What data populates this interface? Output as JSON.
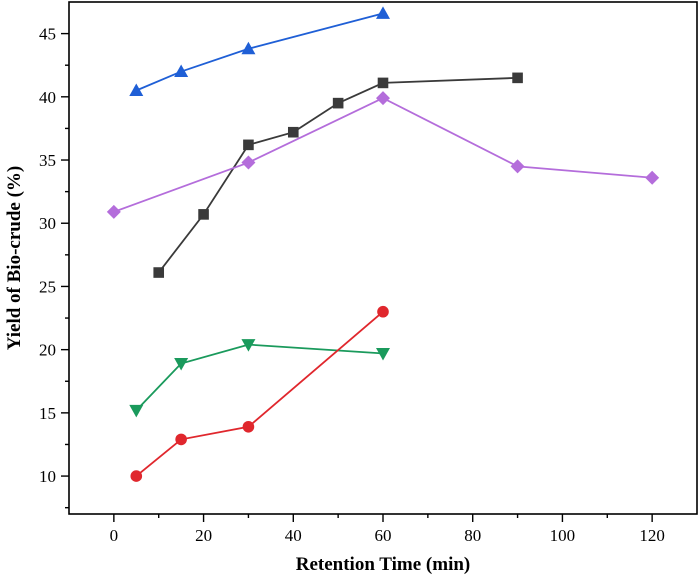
{
  "chart_data": {
    "type": "line",
    "xlabel": "Retention Time (min)",
    "ylabel": "Yield of Bio-crude (%)",
    "xlim": [
      -10,
      130
    ],
    "ylim": [
      7,
      47.5
    ],
    "xticks": [
      0,
      20,
      40,
      60,
      80,
      100,
      120
    ],
    "xtick_labels": [
      "0",
      "20",
      "40",
      "60",
      "80",
      "100",
      "120"
    ],
    "yticks": [
      10,
      15,
      20,
      25,
      30,
      35,
      40,
      45
    ],
    "ytick_labels": [
      "10",
      "15",
      "20",
      "25",
      "30",
      "35",
      "40",
      "45"
    ],
    "grid": false,
    "legend": "none",
    "series": [
      {
        "color": "#1f5fd6",
        "marker": "triangle-up",
        "x": [
          5,
          15,
          30,
          60
        ],
        "y": [
          40.5,
          42.0,
          43.8,
          46.6
        ]
      },
      {
        "color": "#3a3a3a",
        "marker": "square",
        "x": [
          10,
          20,
          30,
          40,
          50,
          60,
          90
        ],
        "y": [
          26.1,
          30.7,
          36.2,
          37.2,
          39.5,
          41.1,
          41.5
        ]
      },
      {
        "color": "#b46ddb",
        "marker": "diamond",
        "x": [
          0,
          30,
          60,
          90,
          120
        ],
        "y": [
          30.9,
          34.8,
          39.9,
          34.5,
          33.6
        ]
      },
      {
        "color": "#1a9a5c",
        "marker": "triangle-down",
        "x": [
          5,
          15,
          30,
          60
        ],
        "y": [
          15.2,
          18.9,
          20.4,
          19.7
        ]
      },
      {
        "color": "#e0272d",
        "marker": "circle",
        "x": [
          5,
          15,
          30,
          60
        ],
        "y": [
          10.0,
          12.9,
          13.9,
          23.0
        ]
      }
    ]
  }
}
